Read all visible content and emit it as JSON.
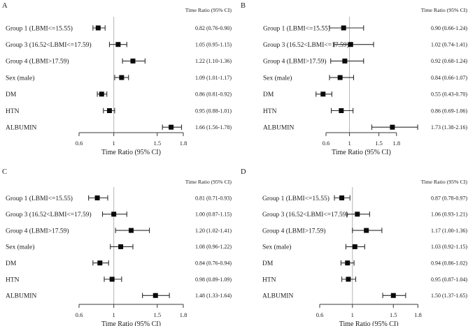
{
  "figure": {
    "background": "#ffffff",
    "text_color": "#1a1a1a",
    "axis_color": "#3a3a3a",
    "reference_line_color": "#b3b3b3",
    "marker_color": "#0a0a0a",
    "ci_line_color": "#2e2e2e"
  },
  "chart_data": [
    {
      "type": "forest",
      "panel": "A",
      "column_header": "Time Ratio (95% CI)",
      "xlabel": "Time Ratio (95% CI)",
      "xticks": [
        "0.6",
        "1",
        "1.5",
        "1.8"
      ],
      "xtick_values": [
        0.6,
        1,
        1.5,
        1.8
      ],
      "xlim": [
        0.6,
        1.8
      ],
      "ref_line": 1,
      "rows": [
        {
          "label": "Group 1 (LBMI<=15.55)",
          "estimate": 0.82,
          "lower": 0.76,
          "upper": 0.9,
          "ci_text": "0.82 (0.76-0.90)"
        },
        {
          "label": "Group 3 (16.52<LBMI<=17.59)",
          "estimate": 1.05,
          "lower": 0.95,
          "upper": 1.15,
          "ci_text": "1.05 (0.95-1.15)"
        },
        {
          "label": "Group 4 (LBMI>17.59)",
          "estimate": 1.22,
          "lower": 1.1,
          "upper": 1.36,
          "ci_text": "1.22 (1.10-1.36)"
        },
        {
          "label": "Sex (male)",
          "estimate": 1.09,
          "lower": 1.01,
          "upper": 1.17,
          "ci_text": "1.09 (1.01-1.17)"
        },
        {
          "label": "DM",
          "estimate": 0.86,
          "lower": 0.81,
          "upper": 0.92,
          "ci_text": "0.86 (0.81-0.92)"
        },
        {
          "label": "HTN",
          "estimate": 0.95,
          "lower": 0.88,
          "upper": 1.01,
          "ci_text": "0.95 (0.88-1.01)"
        },
        {
          "label": "ALBUMIN",
          "estimate": 1.66,
          "lower": 1.56,
          "upper": 1.78,
          "ci_text": "1.66 (1.56-1.78)"
        }
      ]
    },
    {
      "type": "forest",
      "panel": "B",
      "column_header": "Time Ratio (95% CI)",
      "xlabel": "Time Ratio (95% CI)",
      "xticks": [
        "0.6",
        "1",
        "1.5",
        "1.8"
      ],
      "xtick_values": [
        0.6,
        1,
        1.5,
        1.8
      ],
      "xlim": [
        0.6,
        1.8
      ],
      "ref_line": 1,
      "rows": [
        {
          "label": "Group 1 (LBMI<=15.55)",
          "estimate": 0.9,
          "lower": 0.66,
          "upper": 1.24,
          "ci_text": "0.90 (0.66-1.24)"
        },
        {
          "label": "Group 3 (16.52<LBMI<=17.59)",
          "estimate": 1.02,
          "lower": 0.74,
          "upper": 1.41,
          "ci_text": "1.02 (0.74-1.41)"
        },
        {
          "label": "Group 4 (LBMI>17.59)",
          "estimate": 0.92,
          "lower": 0.68,
          "upper": 1.24,
          "ci_text": "0.92 (0.68-1.24)"
        },
        {
          "label": "Sex (male)",
          "estimate": 0.84,
          "lower": 0.66,
          "upper": 1.07,
          "ci_text": "0.84 (0.66-1.07)"
        },
        {
          "label": "DM",
          "estimate": 0.55,
          "lower": 0.43,
          "upper": 0.7,
          "ci_text": "0.55 (0.43-0.70)"
        },
        {
          "label": "HTN",
          "estimate": 0.86,
          "lower": 0.69,
          "upper": 1.06,
          "ci_text": "0.86 (0.69-1.06)"
        },
        {
          "label": "ALBUMIN",
          "estimate": 1.73,
          "lower": 1.38,
          "upper": 2.16,
          "ci_text": "1.73 (1.38-2.16)"
        }
      ]
    },
    {
      "type": "forest",
      "panel": "C",
      "column_header": "Time Ratio (95% CI)",
      "xlabel": "Time Ratio (95% CI)",
      "xticks": [
        "0.6",
        "1",
        "1.5",
        "1.8"
      ],
      "xtick_values": [
        0.6,
        1,
        1.5,
        1.8
      ],
      "xlim": [
        0.6,
        1.8
      ],
      "ref_line": 1,
      "rows": [
        {
          "label": "Group 1 (LBMI<=15.55)",
          "estimate": 0.81,
          "lower": 0.71,
          "upper": 0.93,
          "ci_text": "0.81 (0.71-0.93)"
        },
        {
          "label": "Group 3 (16.52<LBMI<=17.59)",
          "estimate": 1.0,
          "lower": 0.87,
          "upper": 1.15,
          "ci_text": "1.00 (0.87-1.15)"
        },
        {
          "label": "Group 4 (LBMI>17.59)",
          "estimate": 1.2,
          "lower": 1.02,
          "upper": 1.41,
          "ci_text": "1.20 (1.02-1.41)"
        },
        {
          "label": "Sex (male)",
          "estimate": 1.08,
          "lower": 0.96,
          "upper": 1.22,
          "ci_text": "1.08 (0.96-1.22)"
        },
        {
          "label": "DM",
          "estimate": 0.84,
          "lower": 0.76,
          "upper": 0.94,
          "ci_text": "0.84 (0.76-0.94)"
        },
        {
          "label": "HTN",
          "estimate": 0.98,
          "lower": 0.89,
          "upper": 1.09,
          "ci_text": "0.98 (0.89-1.09)"
        },
        {
          "label": "ALBUMIN",
          "estimate": 1.48,
          "lower": 1.33,
          "upper": 1.64,
          "ci_text": "1.48 (1.33-1.64)"
        }
      ]
    },
    {
      "type": "forest",
      "panel": "D",
      "column_header": "Time Ratio (95% CI)",
      "xlabel": "Time Ratio (95% CI)",
      "xticks": [
        "0.6",
        "1",
        "1.5",
        "1.8"
      ],
      "xtick_values": [
        0.6,
        1,
        1.5,
        1.8
      ],
      "xlim": [
        0.6,
        1.8
      ],
      "ref_line": 1,
      "rows": [
        {
          "label": "Group 1 (LBMI<=15.55)",
          "estimate": 0.87,
          "lower": 0.78,
          "upper": 0.97,
          "ci_text": "0.87 (0.78-0.97)"
        },
        {
          "label": "Group 3 (16.52<LBMI<=17.59)",
          "estimate": 1.06,
          "lower": 0.93,
          "upper": 1.21,
          "ci_text": "1.06 (0.93-1.21)"
        },
        {
          "label": "Group 4 (LBMI>17.59)",
          "estimate": 1.17,
          "lower": 1.0,
          "upper": 1.36,
          "ci_text": "1.17 (1.00-1.36)"
        },
        {
          "label": "Sex (male)",
          "estimate": 1.03,
          "lower": 0.92,
          "upper": 1.15,
          "ci_text": "1.03 (0.92-1.15)"
        },
        {
          "label": "DM",
          "estimate": 0.94,
          "lower": 0.86,
          "upper": 1.02,
          "ci_text": "0.94 (0.86-1.02)"
        },
        {
          "label": "HTN",
          "estimate": 0.95,
          "lower": 0.87,
          "upper": 1.04,
          "ci_text": "0.95 (0.87-1.04)"
        },
        {
          "label": "ALBUMIN",
          "estimate": 1.5,
          "lower": 1.37,
          "upper": 1.65,
          "ci_text": "1.50 (1.37-1.65)"
        }
      ]
    }
  ]
}
